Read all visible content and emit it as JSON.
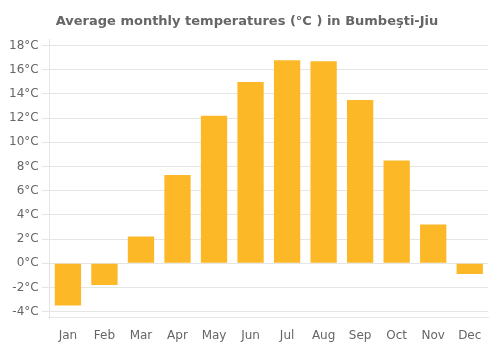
{
  "chart_data": {
    "type": "bar",
    "title": "Average monthly temperatures (°C ) in Bumbeşti-Jiu",
    "categories": [
      "Jan",
      "Feb",
      "Mar",
      "Apr",
      "May",
      "Jun",
      "Jul",
      "Aug",
      "Sep",
      "Oct",
      "Nov",
      "Dec"
    ],
    "values": [
      -3.5,
      -1.8,
      2.2,
      7.3,
      12.2,
      15.0,
      16.8,
      16.7,
      13.5,
      8.5,
      3.2,
      -0.9
    ],
    "color": "#FDB827",
    "ylim": [
      -4.5,
      18.5
    ],
    "yticks": [
      {
        "value": -4,
        "label": "-4°C"
      },
      {
        "value": -2,
        "label": "-2°C"
      },
      {
        "value": 0,
        "label": "0°C"
      },
      {
        "value": 2,
        "label": "2°C"
      },
      {
        "value": 4,
        "label": "4°C"
      },
      {
        "value": 6,
        "label": "6°C"
      },
      {
        "value": 8,
        "label": "8°C"
      },
      {
        "value": 10,
        "label": "10°C"
      },
      {
        "value": 12,
        "label": "12°C"
      },
      {
        "value": 14,
        "label": "14°C"
      },
      {
        "value": 16,
        "label": "16°C"
      },
      {
        "value": 18,
        "label": "18°C"
      }
    ],
    "grid": true
  }
}
